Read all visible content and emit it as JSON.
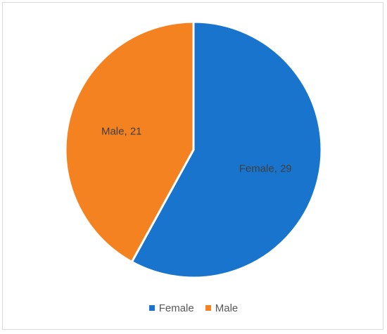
{
  "chart_data": {
    "type": "pie",
    "categories": [
      "Female",
      "Male"
    ],
    "values": [
      29,
      21
    ],
    "colors": [
      "#1874cd",
      "#f58220"
    ],
    "data_labels": [
      "Female, 29",
      "Male, 21"
    ],
    "legend_position": "bottom",
    "start_angle_deg": 0,
    "direction": "clockwise"
  }
}
